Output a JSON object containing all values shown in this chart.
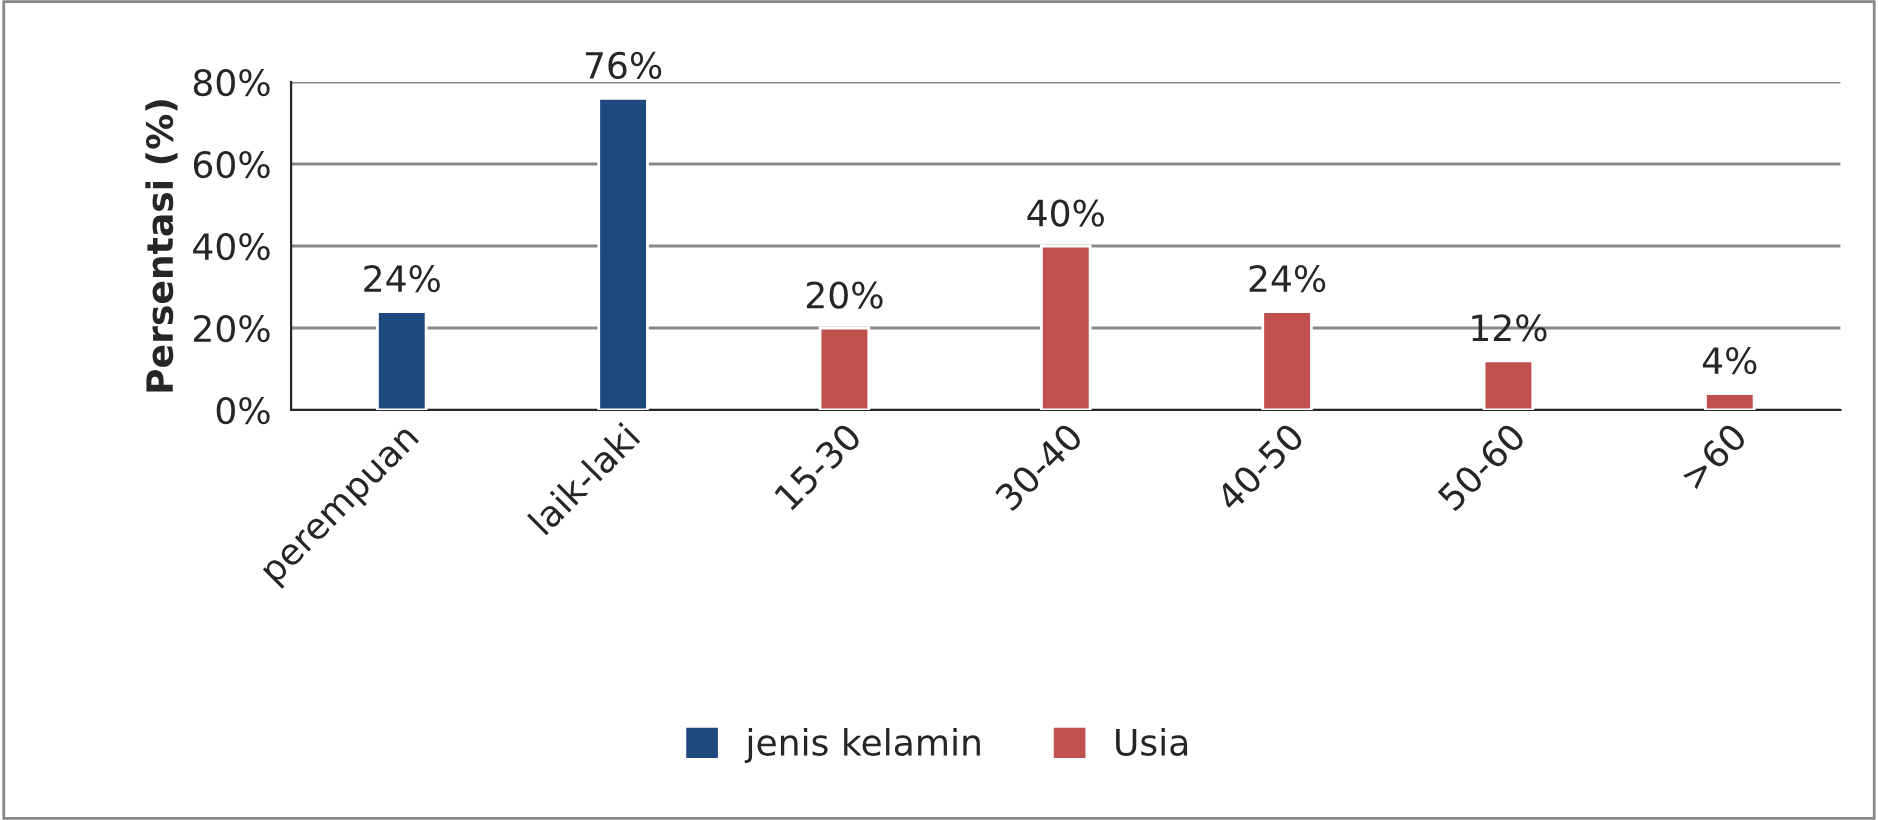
{
  "chart_data": {
    "type": "bar",
    "ylabel": "Persentasi (%)",
    "categories": [
      "perempuan",
      "laik-laki",
      "15-30",
      "30-40",
      "40-50",
      "50-60",
      ">60"
    ],
    "series": [
      {
        "name": "jenis kelamin",
        "color": "#1f497d",
        "values": [
          24,
          76,
          null,
          null,
          null,
          null,
          null
        ],
        "value_labels": [
          "24%",
          "76%",
          null,
          null,
          null,
          null,
          null
        ]
      },
      {
        "name": "Usia",
        "color": "#c0504d",
        "values": [
          null,
          null,
          20,
          40,
          24,
          12,
          4
        ],
        "value_labels": [
          null,
          null,
          "20%",
          "40%",
          "24%",
          "12%",
          "4%"
        ]
      }
    ],
    "ylim": [
      0,
      80
    ],
    "yticks": [
      {
        "value": 0,
        "label": "0%"
      },
      {
        "value": 20,
        "label": "20%"
      },
      {
        "value": 40,
        "label": "40%"
      },
      {
        "value": 60,
        "label": "60%"
      },
      {
        "value": 80,
        "label": "80%"
      }
    ],
    "grid": "y",
    "legend": "bottom"
  }
}
